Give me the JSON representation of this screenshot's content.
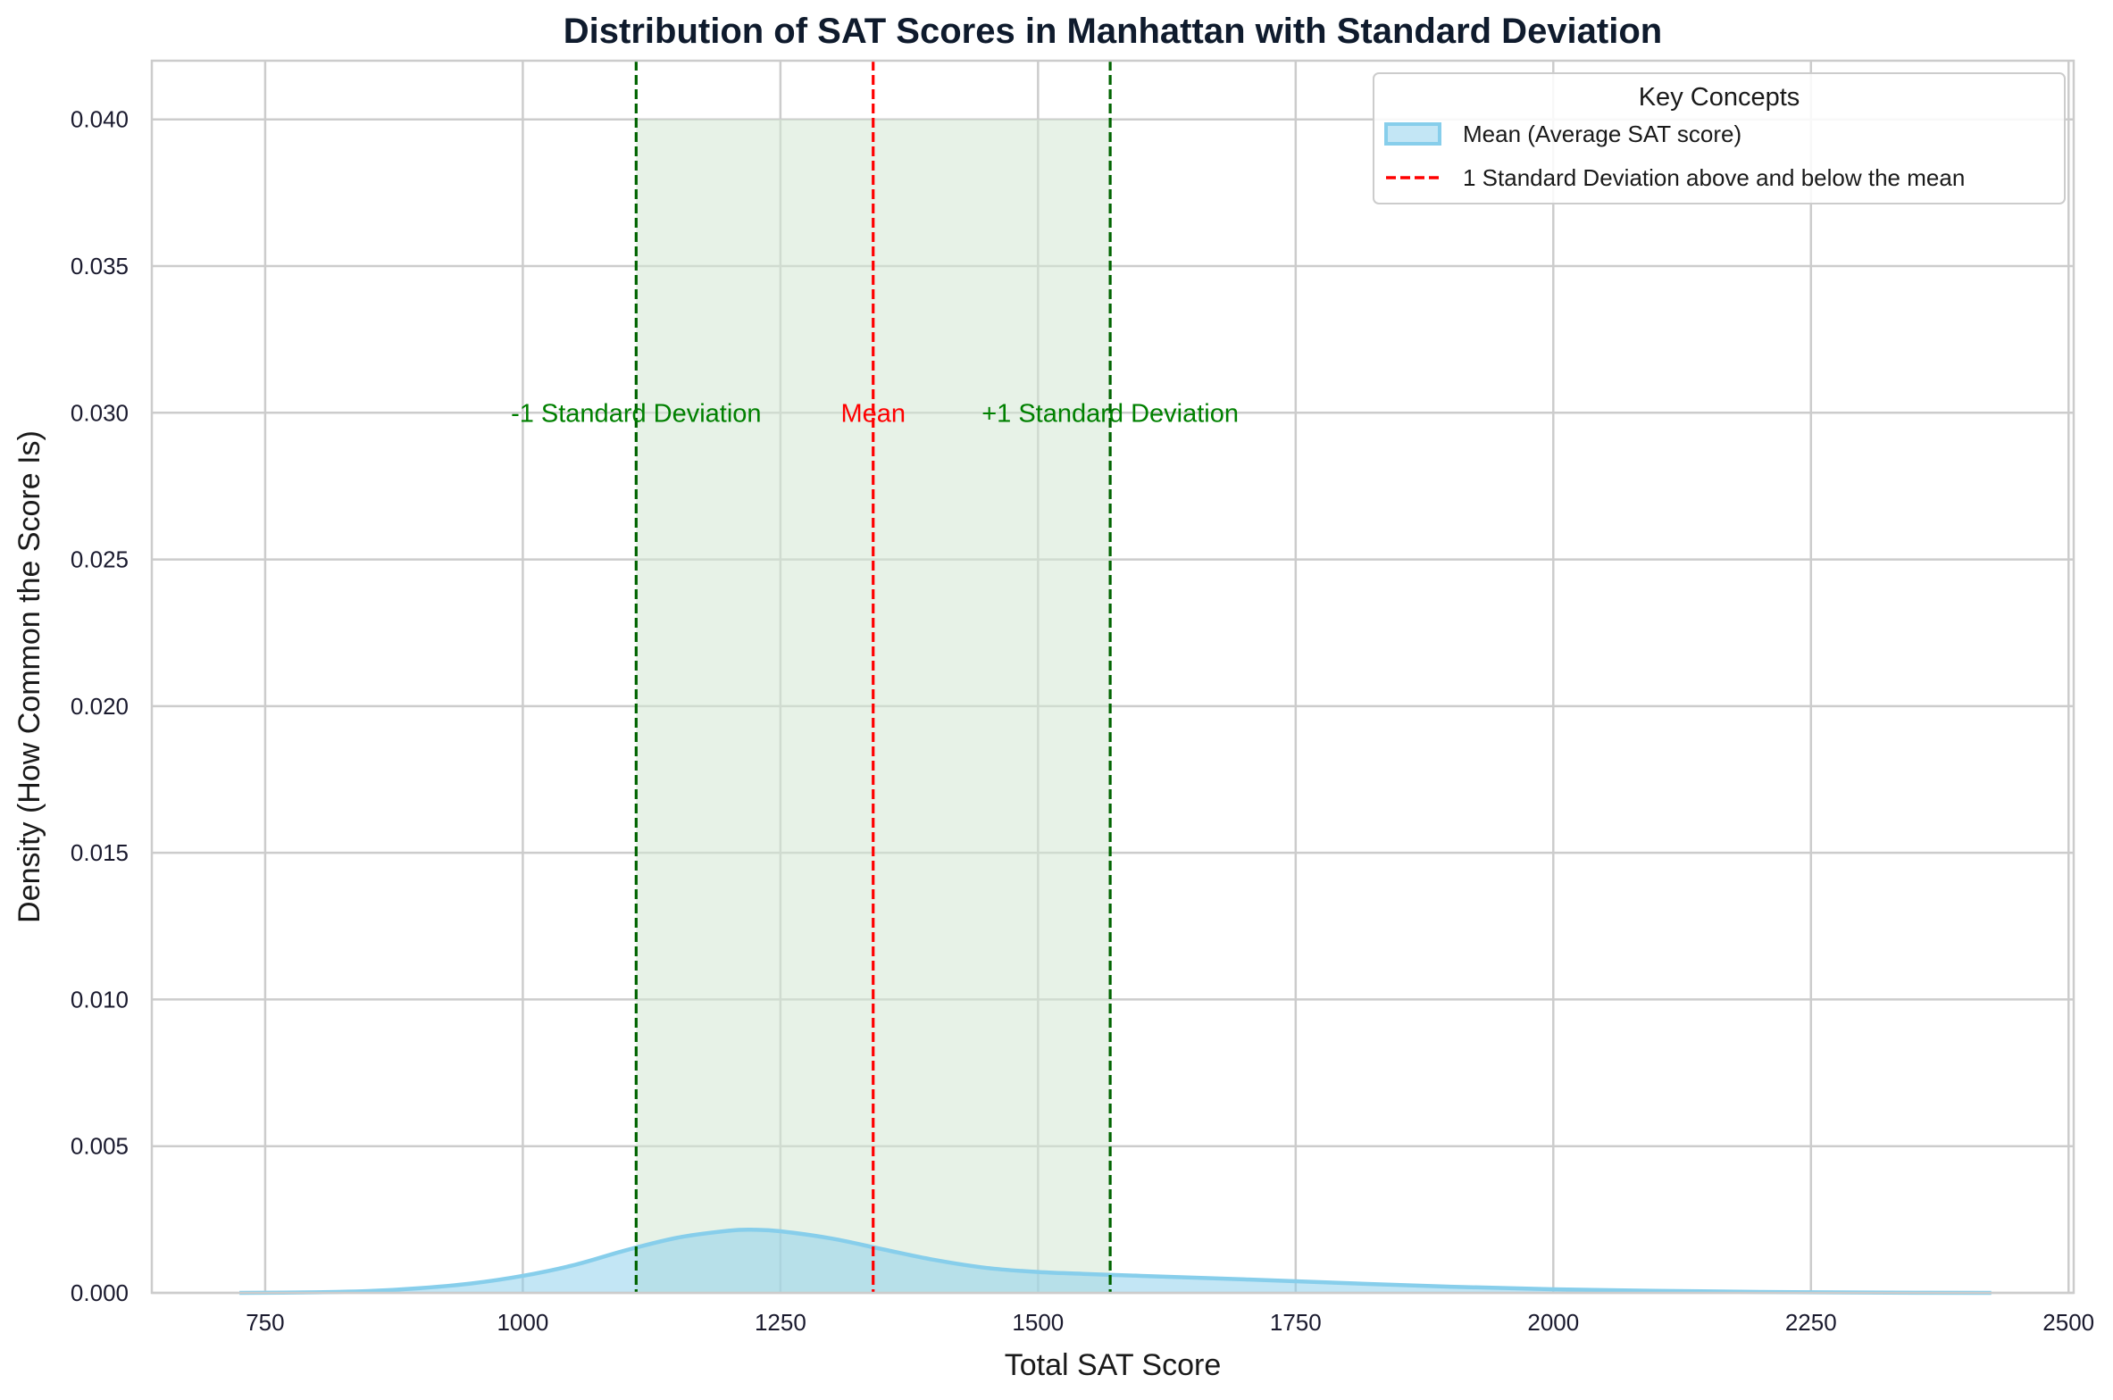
{
  "chart_data": {
    "type": "area",
    "title": "Distribution of SAT Scores in Manhattan with Standard Deviation",
    "xlabel": "Total SAT Score",
    "ylabel": "Density (How Common the Score Is)",
    "xlim": [
      640,
      2505
    ],
    "ylim": [
      0,
      0.042
    ],
    "xticks": [
      750,
      1000,
      1250,
      1500,
      1750,
      2000,
      2250,
      2500
    ],
    "yticks": [
      0.0,
      0.005,
      0.01,
      0.015,
      0.02,
      0.025,
      0.03,
      0.035,
      0.04
    ],
    "ytick_labels": [
      "0.000",
      "0.005",
      "0.010",
      "0.015",
      "0.020",
      "0.025",
      "0.030",
      "0.035",
      "0.040"
    ],
    "grid": true,
    "density": {
      "color": "#87ceeb",
      "x": [
        725,
        800,
        850,
        900,
        950,
        1000,
        1050,
        1100,
        1150,
        1200,
        1225,
        1250,
        1300,
        1350,
        1400,
        1450,
        1500,
        1550,
        1600,
        1700,
        1800,
        1900,
        2000,
        2100,
        2200,
        2300,
        2425
      ],
      "y": [
        0.0,
        2e-05,
        6e-05,
        0.00016,
        0.00032,
        0.00058,
        0.00095,
        0.00145,
        0.00188,
        0.00212,
        0.00215,
        0.0021,
        0.00185,
        0.00148,
        0.00112,
        0.00085,
        0.00071,
        0.00064,
        0.00058,
        0.00046,
        0.00033,
        0.00021,
        0.00012,
        7e-05,
        3e-05,
        1e-05,
        0.0
      ]
    },
    "mean": 1340,
    "mean_color": "#ff0000",
    "sd_lower": 1110,
    "sd_upper": 1570,
    "sd_color": "#006400",
    "band": {
      "x0": 1110,
      "x1": 1570,
      "y_top": 0.04,
      "color": "#d3e8d3"
    },
    "annotations": [
      {
        "text": "-1 Standard Deviation",
        "x": 1110,
        "y": 0.03,
        "color": "#008000"
      },
      {
        "text": "Mean",
        "x": 1340,
        "y": 0.03,
        "color": "#ff0000"
      },
      {
        "text": "+1 Standard Deviation",
        "x": 1570,
        "y": 0.03,
        "color": "#008000"
      }
    ],
    "legend": {
      "title": "Key Concepts",
      "placement": "top-right",
      "entries": [
        {
          "label": "Mean (Average SAT score)",
          "kind": "patch"
        },
        {
          "label": "1 Standard Deviation above and below the mean",
          "kind": "dashed-line"
        }
      ]
    }
  }
}
